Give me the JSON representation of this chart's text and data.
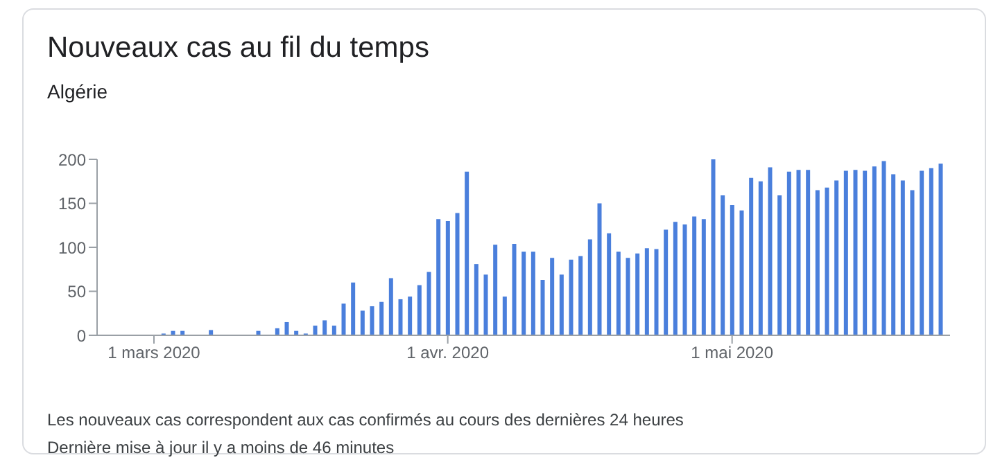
{
  "chart_data": {
    "type": "bar",
    "title": "Nouveaux cas au fil du temps",
    "subtitle": "Algérie",
    "x": [
      "2020-03-02",
      "2020-03-03",
      "2020-03-04",
      "2020-03-07",
      "2020-03-12",
      "2020-03-14",
      "2020-03-15",
      "2020-03-16",
      "2020-03-17",
      "2020-03-18",
      "2020-03-19",
      "2020-03-20",
      "2020-03-21",
      "2020-03-22",
      "2020-03-23",
      "2020-03-24",
      "2020-03-25",
      "2020-03-26",
      "2020-03-27",
      "2020-03-28",
      "2020-03-29",
      "2020-03-30",
      "2020-03-31",
      "2020-04-01",
      "2020-04-02",
      "2020-04-03",
      "2020-04-04",
      "2020-04-05",
      "2020-04-06",
      "2020-04-07",
      "2020-04-08",
      "2020-04-09",
      "2020-04-10",
      "2020-04-11",
      "2020-04-12",
      "2020-04-13",
      "2020-04-14",
      "2020-04-15",
      "2020-04-16",
      "2020-04-17",
      "2020-04-18",
      "2020-04-19",
      "2020-04-20",
      "2020-04-21",
      "2020-04-22",
      "2020-04-23",
      "2020-04-24",
      "2020-04-25",
      "2020-04-26",
      "2020-04-27",
      "2020-04-28",
      "2020-04-29",
      "2020-04-30",
      "2020-05-01",
      "2020-05-02",
      "2020-05-03",
      "2020-05-04",
      "2020-05-05",
      "2020-05-06",
      "2020-05-07",
      "2020-05-08",
      "2020-05-09",
      "2020-05-10",
      "2020-05-11",
      "2020-05-12",
      "2020-05-13",
      "2020-05-14",
      "2020-05-15",
      "2020-05-16",
      "2020-05-17",
      "2020-05-18",
      "2020-05-19",
      "2020-05-20",
      "2020-05-21",
      "2020-05-22",
      "2020-05-23"
    ],
    "values": [
      2,
      5,
      5,
      6,
      5,
      8,
      15,
      5,
      2,
      11,
      17,
      11,
      36,
      60,
      28,
      33,
      38,
      65,
      41,
      44,
      57,
      72,
      132,
      130,
      139,
      186,
      81,
      69,
      103,
      44,
      104,
      95,
      95,
      63,
      88,
      69,
      86,
      90,
      109,
      150,
      116,
      95,
      88,
      93,
      99,
      98,
      120,
      129,
      126,
      135,
      132,
      200,
      159,
      148,
      142,
      179,
      175,
      191,
      159,
      186,
      188,
      188,
      165,
      168,
      176,
      187,
      188,
      187,
      192,
      198,
      183,
      176,
      165,
      187,
      190,
      195
    ],
    "color": "#4a7fdc",
    "xlim": [
      "2020-02-24",
      "2020-05-24"
    ],
    "xticks": [
      {
        "value": "2020-03-01",
        "label": "1 mars 2020"
      },
      {
        "value": "2020-04-01",
        "label": "1 avr. 2020"
      },
      {
        "value": "2020-05-01",
        "label": "1 mai 2020"
      }
    ],
    "ylim": [
      0,
      200
    ],
    "yticks": [
      0,
      50,
      100,
      150,
      200
    ],
    "grid": false,
    "legend": false,
    "annotations": [
      "Les nouveaux cas correspondent aux cas confirmés au cours des dernières 24 heures",
      "Dernière mise à jour il y a moins de 46 minutes"
    ]
  }
}
